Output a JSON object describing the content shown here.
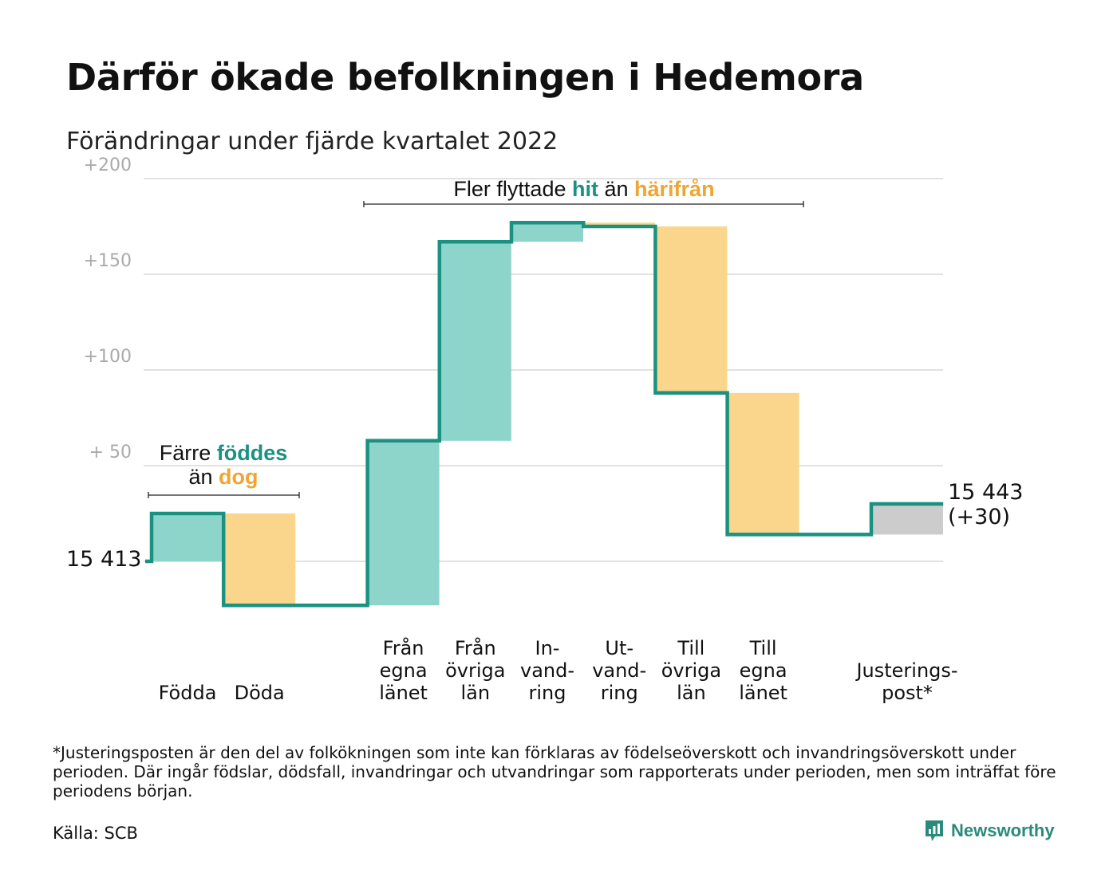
{
  "title": "Därför ökade befolkningen i Hedemora",
  "subtitle": "Förändringar under fjärde kvartalet 2022",
  "footnote": "*Justeringsposten är den del av folkökningen som inte kan förklaras av födelseöverskott och invandringsöverskott under perioden. Där ingår födslar, dödsfall, invandringar och utvandringar som rapporterats under perioden, men som inträffat före periodens början.",
  "source": "Källa: SCB",
  "logo": {
    "name": "Newsworthy",
    "icon": "newsworthy-logo-icon"
  },
  "annotations": {
    "births": {
      "pre": "Färre ",
      "hl1": "föddes",
      "mid": "än ",
      "hl2": "dog"
    },
    "moves": {
      "pre": "Fler flyttade ",
      "hl1": "hit",
      "mid": " än ",
      "hl2": "härifrån"
    }
  },
  "start_label": "15 413",
  "end_label": {
    "line1": "15 443",
    "line2": "(+30)"
  },
  "colors": {
    "increase": "#8dd4ca",
    "decrease": "#f9d68c",
    "adjustment": "#cccccc",
    "line": "#1a9181",
    "grid": "#e2e2e2",
    "tick": "#aaaaaa",
    "highlight_green": "#1a9181",
    "highlight_orange": "#f0a531"
  },
  "chart_data": {
    "type": "waterfall",
    "title": "Därför ökade befolkningen i Hedemora",
    "subtitle": "Förändringar under fjärde kvartalet 2022",
    "start_value": 15413,
    "end_value": 15443,
    "net_change": 30,
    "y_ticks": [
      {
        "value": 50,
        "label": "+ 50"
      },
      {
        "value": 100,
        "label": "+100"
      },
      {
        "value": 150,
        "label": "+150"
      },
      {
        "value": 200,
        "label": "+200"
      }
    ],
    "ylim": [
      -35,
      205
    ],
    "grid": true,
    "steps": [
      {
        "label_lines": [
          "Födda"
        ],
        "change": 25,
        "kind": "increase"
      },
      {
        "label_lines": [
          "Döda"
        ],
        "change": -48,
        "kind": "decrease"
      },
      {
        "label_lines": [],
        "change": 0,
        "kind": "gap"
      },
      {
        "label_lines": [
          "Från",
          "egna",
          "länet"
        ],
        "change": 86,
        "kind": "increase"
      },
      {
        "label_lines": [
          "Från",
          "övriga",
          "län"
        ],
        "change": 104,
        "kind": "increase"
      },
      {
        "label_lines": [
          "In-",
          "vand-",
          "ring"
        ],
        "change": 10,
        "kind": "increase"
      },
      {
        "label_lines": [
          "Ut-",
          "vand-",
          "ring"
        ],
        "change": -2,
        "kind": "decrease"
      },
      {
        "label_lines": [
          "Till",
          "övriga",
          "län"
        ],
        "change": -87,
        "kind": "decrease"
      },
      {
        "label_lines": [
          "Till",
          "egna",
          "länet"
        ],
        "change": -74,
        "kind": "decrease"
      },
      {
        "label_lines": [],
        "change": 0,
        "kind": "gap"
      },
      {
        "label_lines": [
          "Justerings-",
          "post*"
        ],
        "change": 16,
        "kind": "adjustment"
      }
    ]
  }
}
